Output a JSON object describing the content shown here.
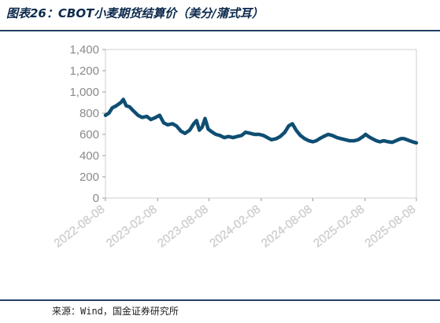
{
  "header": {
    "title": "图表26：CBOT小麦期货结算价（美分/蒲式耳）"
  },
  "footer": {
    "source": "来源：Wind，国金证券研究所"
  },
  "chart_data": {
    "type": "line",
    "title": "图表26：CBOT小麦期货结算价（美分/蒲式耳）",
    "xlabel": "",
    "ylabel": "",
    "ylim": [
      0,
      1400
    ],
    "yticks": [
      0,
      200,
      400,
      600,
      800,
      1000,
      1200,
      1400
    ],
    "ytick_labels": [
      "0",
      "200",
      "400",
      "600",
      "800",
      "1,000",
      "1,200",
      "1,400"
    ],
    "xlim": [
      "2022-08-08",
      "2025-08-08"
    ],
    "xticks": [
      "2022-08-08",
      "2023-02-08",
      "2023-08-08",
      "2024-02-08",
      "2024-08-08",
      "2025-02-08",
      "2025-08-08"
    ],
    "grid": false,
    "legend": "none",
    "line_color": "#0f4e73",
    "series": [
      {
        "values": [
          [
            "2022-08-08",
            780
          ],
          [
            "2022-08-20",
            800
          ],
          [
            "2022-09-01",
            850
          ],
          [
            "2022-09-15",
            870
          ],
          [
            "2022-10-01",
            900
          ],
          [
            "2022-10-10",
            930
          ],
          [
            "2022-10-20",
            870
          ],
          [
            "2022-11-01",
            860
          ],
          [
            "2022-11-15",
            820
          ],
          [
            "2022-12-01",
            780
          ],
          [
            "2022-12-15",
            760
          ],
          [
            "2023-01-01",
            770
          ],
          [
            "2023-01-15",
            740
          ],
          [
            "2023-02-01",
            760
          ],
          [
            "2023-02-15",
            780
          ],
          [
            "2023-03-01",
            710
          ],
          [
            "2023-03-15",
            690
          ],
          [
            "2023-04-01",
            700
          ],
          [
            "2023-04-15",
            680
          ],
          [
            "2023-05-01",
            630
          ],
          [
            "2023-05-15",
            610
          ],
          [
            "2023-06-01",
            640
          ],
          [
            "2023-06-15",
            700
          ],
          [
            "2023-06-25",
            730
          ],
          [
            "2023-07-05",
            640
          ],
          [
            "2023-07-15",
            670
          ],
          [
            "2023-07-25",
            750
          ],
          [
            "2023-08-05",
            650
          ],
          [
            "2023-08-20",
            620
          ],
          [
            "2023-09-01",
            600
          ],
          [
            "2023-09-15",
            590
          ],
          [
            "2023-10-01",
            570
          ],
          [
            "2023-10-15",
            580
          ],
          [
            "2023-11-01",
            570
          ],
          [
            "2023-11-15",
            580
          ],
          [
            "2023-12-01",
            590
          ],
          [
            "2023-12-15",
            620
          ],
          [
            "2024-01-01",
            610
          ],
          [
            "2024-01-15",
            600
          ],
          [
            "2024-02-01",
            600
          ],
          [
            "2024-02-15",
            590
          ],
          [
            "2024-03-01",
            570
          ],
          [
            "2024-03-15",
            550
          ],
          [
            "2024-04-01",
            560
          ],
          [
            "2024-04-15",
            580
          ],
          [
            "2024-05-01",
            620
          ],
          [
            "2024-05-15",
            680
          ],
          [
            "2024-05-28",
            700
          ],
          [
            "2024-06-10",
            640
          ],
          [
            "2024-06-25",
            590
          ],
          [
            "2024-07-10",
            560
          ],
          [
            "2024-07-25",
            540
          ],
          [
            "2024-08-08",
            530
          ],
          [
            "2024-08-20",
            540
          ],
          [
            "2024-09-01",
            560
          ],
          [
            "2024-09-15",
            580
          ],
          [
            "2024-10-01",
            600
          ],
          [
            "2024-10-15",
            590
          ],
          [
            "2024-11-01",
            570
          ],
          [
            "2024-11-15",
            560
          ],
          [
            "2024-12-01",
            550
          ],
          [
            "2024-12-15",
            540
          ],
          [
            "2025-01-01",
            540
          ],
          [
            "2025-01-15",
            550
          ],
          [
            "2025-02-01",
            580
          ],
          [
            "2025-02-10",
            600
          ],
          [
            "2025-02-20",
            580
          ],
          [
            "2025-03-05",
            560
          ],
          [
            "2025-03-20",
            540
          ],
          [
            "2025-04-01",
            530
          ],
          [
            "2025-04-15",
            540
          ],
          [
            "2025-05-01",
            530
          ],
          [
            "2025-05-15",
            525
          ],
          [
            "2025-06-01",
            545
          ],
          [
            "2025-06-15",
            560
          ],
          [
            "2025-06-25",
            560
          ],
          [
            "2025-07-10",
            545
          ],
          [
            "2025-07-25",
            530
          ],
          [
            "2025-08-08",
            520
          ]
        ]
      }
    ]
  }
}
